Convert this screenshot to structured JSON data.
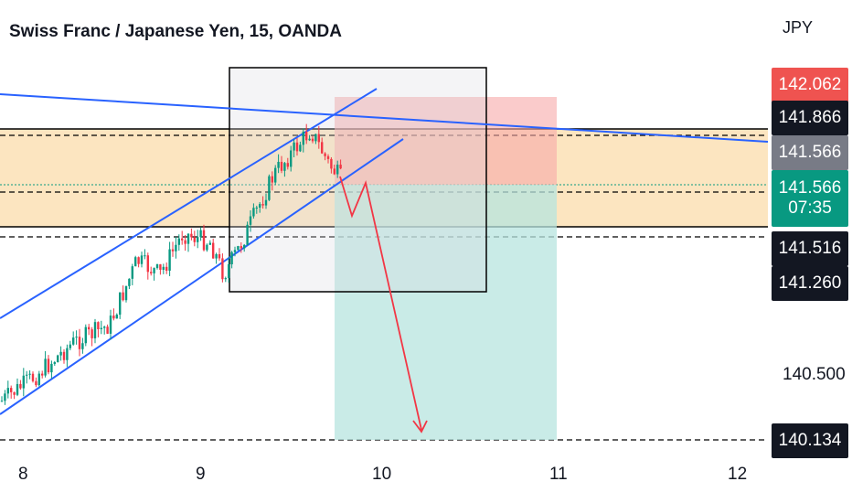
{
  "title": "Swiss Franc / Japanese Yen, 15, OANDA",
  "currency": "JPY",
  "price_labels": {
    "stop": "142.062",
    "level_1": "141.866",
    "entry": "141.566",
    "last_price": "141.566",
    "countdown": "07:35",
    "level_2": "141.516",
    "level_3": "141.260",
    "target": "140.134"
  },
  "price_axis_tick": "140.500",
  "time_axis": [
    "8",
    "9",
    "10",
    "11",
    "12"
  ],
  "colors": {
    "stop_label": "#ef5350",
    "level_label": "#131722",
    "entry_label": "#787b86",
    "last_price_label": "#089981",
    "channel_line": "#2962ff",
    "projection_arrow": "#f23645",
    "supply_zone": "#fce5c0",
    "stop_zone": "#f8bfbf",
    "target_zone": "#b7e4df",
    "candle_up": "#089981",
    "candle_down": "#f23645"
  }
}
